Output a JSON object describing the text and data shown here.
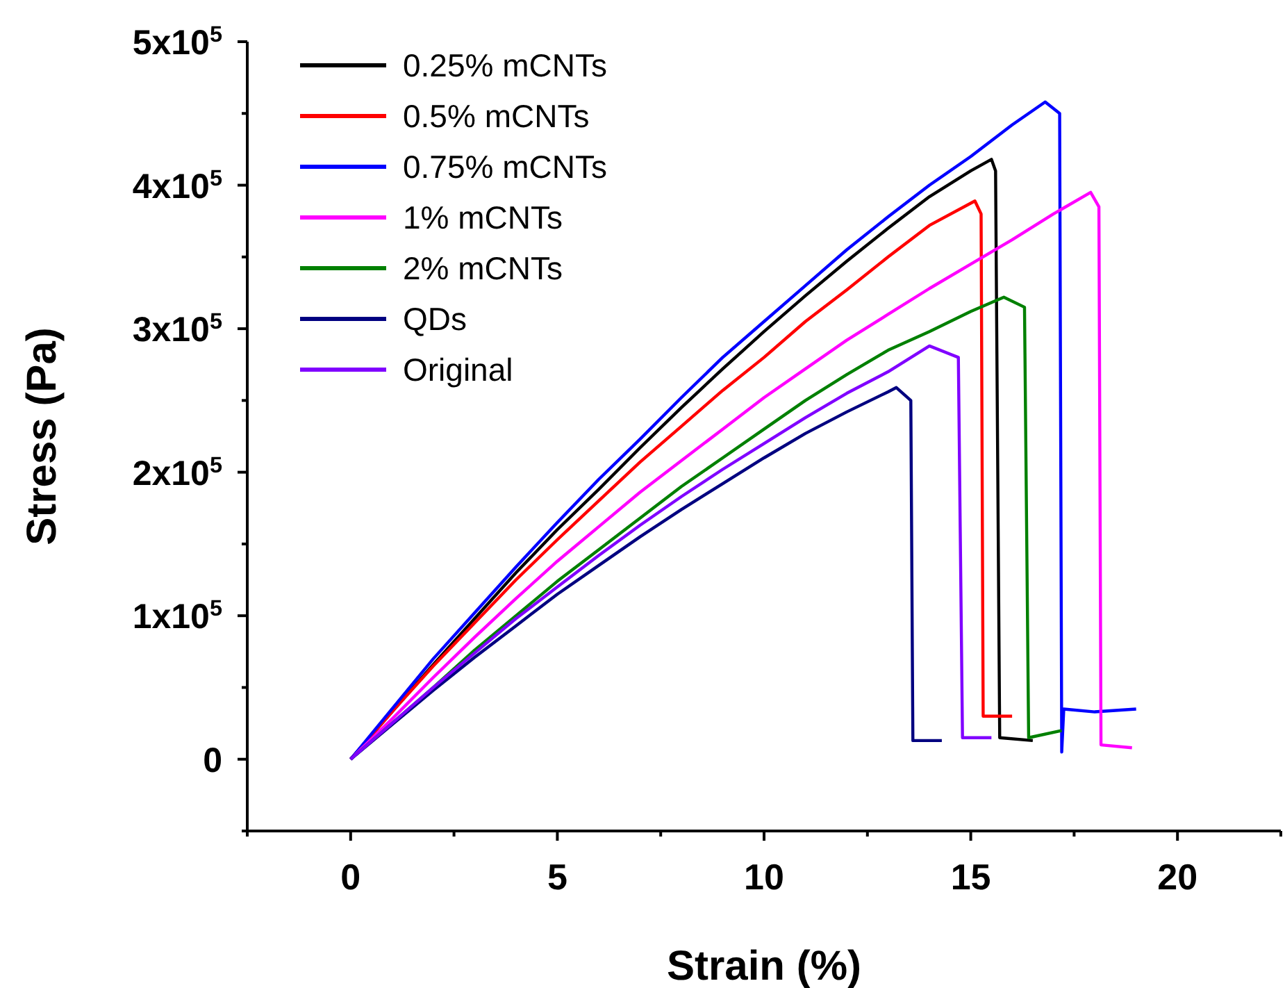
{
  "chart_data": {
    "type": "line",
    "xlabel": "Strain (%)",
    "ylabel": "Stress (Pa)",
    "xlim": [
      -2.5,
      22.5
    ],
    "xticks": [
      {
        "value": -2.5,
        "label": null
      },
      0,
      {
        "value": 2.5,
        "label": null
      },
      5,
      {
        "value": 7.5,
        "label": null
      },
      10,
      {
        "value": 12.5,
        "label": null
      },
      15,
      {
        "value": 17.5,
        "label": null
      },
      20,
      {
        "value": 22.5,
        "label": null
      }
    ],
    "ylim": [
      -50000,
      500000
    ],
    "yticks": [
      {
        "value": -50000,
        "label": null
      },
      0,
      {
        "value": 50000,
        "label": null
      },
      {
        "value": 100000,
        "label": "1x10$^{5}$"
      },
      {
        "value": 150000,
        "label": null
      },
      {
        "value": 200000,
        "label": "2x10$^{5}$"
      },
      {
        "value": 250000,
        "label": null
      },
      {
        "value": 300000,
        "label": "3x10$^{5}$"
      },
      {
        "value": 350000,
        "label": null
      },
      {
        "value": 400000,
        "label": "4x10$^{5}$"
      },
      {
        "value": 450000,
        "label": null
      },
      {
        "value": 500000,
        "label": "5x10$^{5}$"
      }
    ],
    "grid": false,
    "legend": "top left",
    "marker": "none",
    "line_style": "solid",
    "series": [
      {
        "name": "0.25% mCNTs",
        "color": "#000000",
        "x": [
          0,
          2,
          3,
          4,
          5,
          6,
          7,
          8,
          9,
          10,
          11,
          12,
          13,
          14,
          15,
          15.5,
          15.6,
          15.7,
          16.5
        ],
        "values": [
          0,
          66000,
          98000,
          130000,
          160000,
          188000,
          217000,
          245000,
          272000,
          298000,
          323000,
          347000,
          370000,
          392000,
          410000,
          418000,
          410000,
          15000,
          13000
        ]
      },
      {
        "name": "0.5% mCNTs",
        "color": "#ff0000",
        "x": [
          0,
          1,
          2,
          3,
          4,
          5,
          6,
          7,
          8,
          9,
          10,
          11,
          12,
          13,
          14,
          15.1,
          15.25,
          15.3,
          16.0
        ],
        "values": [
          0,
          33000,
          65000,
          95000,
          125000,
          153000,
          180000,
          207000,
          232000,
          257000,
          280000,
          305000,
          327000,
          350000,
          372000,
          389000,
          380000,
          30000,
          30000
        ]
      },
      {
        "name": "0.75% mCNTs",
        "color": "#0000ff",
        "x": [
          0,
          1,
          2,
          3,
          4,
          5,
          6,
          7,
          8,
          9,
          10,
          11,
          12,
          13,
          14,
          15,
          16,
          16.8,
          17.15,
          17.2,
          17.25,
          18,
          19
        ],
        "values": [
          0,
          35000,
          70000,
          102000,
          134000,
          165000,
          195000,
          223000,
          252000,
          280000,
          305000,
          330000,
          355000,
          378000,
          400000,
          420000,
          442000,
          458000,
          450000,
          5000,
          35000,
          33000,
          35000
        ]
      },
      {
        "name": "1% mCNTs",
        "color": "#ff00ff",
        "x": [
          0,
          1,
          2,
          3,
          4,
          5,
          6,
          7,
          8,
          9,
          10,
          11,
          12,
          13,
          14,
          15,
          16,
          17,
          17.9,
          18.1,
          18.15,
          18.9
        ],
        "values": [
          0,
          28000,
          57000,
          85000,
          112000,
          138000,
          162000,
          186000,
          208000,
          230000,
          252000,
          272000,
          292000,
          310000,
          328000,
          345000,
          362000,
          380000,
          395000,
          385000,
          10000,
          8000
        ]
      },
      {
        "name": "2% mCNTs",
        "color": "#008000",
        "x": [
          0,
          2,
          3,
          4,
          5,
          6,
          7,
          8,
          9,
          10,
          11,
          12,
          13,
          14,
          15,
          15.8,
          16.3,
          16.4,
          17.2
        ],
        "values": [
          0,
          50000,
          76000,
          100000,
          124000,
          146000,
          168000,
          190000,
          210000,
          230000,
          250000,
          268000,
          285000,
          298000,
          312000,
          322000,
          315000,
          15000,
          20000
        ]
      },
      {
        "name": "QDs",
        "color": "#000080",
        "x": [
          0,
          1,
          2,
          3,
          4,
          5,
          6,
          7,
          8,
          9,
          10,
          11,
          12,
          13,
          13.2,
          13.55,
          13.6,
          14.3
        ],
        "values": [
          0,
          24000,
          48000,
          71000,
          93000,
          115000,
          135000,
          155000,
          174000,
          192000,
          210000,
          227000,
          242000,
          256000,
          259000,
          250000,
          13000,
          13000
        ]
      },
      {
        "name": "Original",
        "color": "#8000ff",
        "x": [
          0,
          1,
          2,
          3,
          4,
          5,
          6,
          7,
          8,
          9,
          10,
          11,
          12,
          13,
          14,
          14.7,
          14.8,
          15.5
        ],
        "values": [
          0,
          25000,
          50000,
          74000,
          98000,
          120000,
          142000,
          163000,
          183000,
          202000,
          220000,
          238000,
          255000,
          270000,
          288000,
          280000,
          15000,
          15000
        ]
      }
    ]
  }
}
